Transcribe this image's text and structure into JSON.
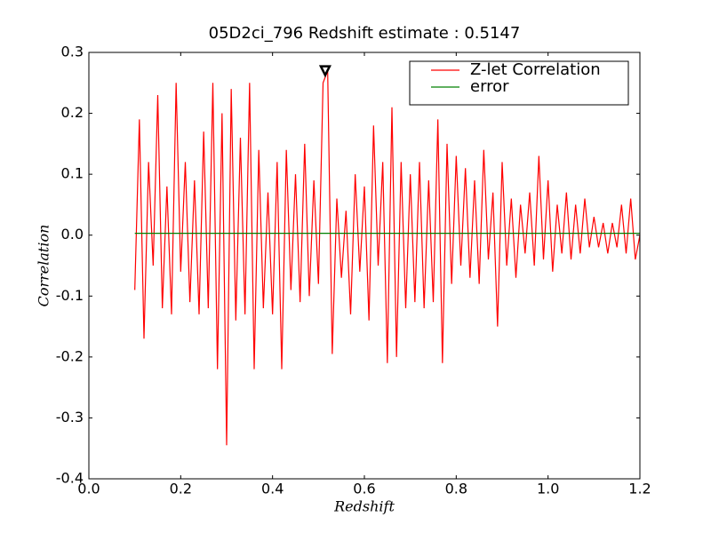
{
  "chart_data": {
    "type": "line",
    "title": "05D2ci_796 Redshift estimate : 0.5147",
    "x_label": "Redshift",
    "y_label": "Correlation",
    "xlim": [
      0,
      1.2
    ],
    "ylim": [
      -0.4,
      0.3
    ],
    "xticks": [
      {
        "value": 0,
        "label": "0.0"
      },
      0.2,
      0.4,
      0.6,
      0.8,
      {
        "value": 1,
        "label": "1.0"
      },
      1.2
    ],
    "yticks": [
      {
        "value": -0.4,
        "label": "-0.4"
      },
      -0.3,
      -0.2,
      -0.1,
      {
        "value": 0,
        "label": "0.0"
      },
      0.1,
      0.2,
      0.3
    ],
    "grid": false,
    "legend": "upper right",
    "marker": {
      "x": 0.5147,
      "y": 0.27
    },
    "series": [
      {
        "name": "Z-let Correlation",
        "color": "#ff0000",
        "x": [
          0.1,
          0.11,
          0.12,
          0.13,
          0.14,
          0.15,
          0.16,
          0.17,
          0.18,
          0.19,
          0.2,
          0.21,
          0.22,
          0.23,
          0.24,
          0.25,
          0.26,
          0.27,
          0.28,
          0.29,
          0.3,
          0.31,
          0.32,
          0.33,
          0.34,
          0.35,
          0.36,
          0.37,
          0.38,
          0.39,
          0.4,
          0.41,
          0.42,
          0.43,
          0.44,
          0.45,
          0.46,
          0.47,
          0.48,
          0.49,
          0.5,
          0.51,
          0.52,
          0.53,
          0.54,
          0.55,
          0.56,
          0.57,
          0.58,
          0.59,
          0.6,
          0.61,
          0.62,
          0.63,
          0.64,
          0.65,
          0.66,
          0.67,
          0.68,
          0.69,
          0.7,
          0.71,
          0.72,
          0.73,
          0.74,
          0.75,
          0.76,
          0.77,
          0.78,
          0.79,
          0.8,
          0.81,
          0.82,
          0.83,
          0.84,
          0.85,
          0.86,
          0.87,
          0.88,
          0.89,
          0.9,
          0.91,
          0.92,
          0.93,
          0.94,
          0.95,
          0.96,
          0.97,
          0.98,
          0.99,
          1.0,
          1.01,
          1.02,
          1.03,
          1.04,
          1.05,
          1.06,
          1.07,
          1.08,
          1.09,
          1.1,
          1.11,
          1.12,
          1.13,
          1.14,
          1.15,
          1.16,
          1.17,
          1.18,
          1.19,
          1.2
        ],
        "values": [
          -0.09,
          0.19,
          -0.17,
          0.12,
          -0.05,
          0.23,
          -0.12,
          0.08,
          -0.13,
          0.25,
          -0.06,
          0.12,
          -0.11,
          0.09,
          -0.13,
          0.17,
          -0.12,
          0.25,
          -0.22,
          0.2,
          -0.345,
          0.24,
          -0.14,
          0.16,
          -0.13,
          0.25,
          -0.22,
          0.14,
          -0.12,
          0.07,
          -0.13,
          0.12,
          -0.22,
          0.14,
          -0.09,
          0.1,
          -0.11,
          0.15,
          -0.1,
          0.09,
          -0.08,
          0.25,
          0.27,
          -0.195,
          0.06,
          -0.07,
          0.04,
          -0.13,
          0.1,
          -0.06,
          0.08,
          -0.14,
          0.18,
          -0.05,
          0.12,
          -0.21,
          0.21,
          -0.2,
          0.12,
          -0.12,
          0.1,
          -0.11,
          0.12,
          -0.12,
          0.09,
          -0.11,
          0.19,
          -0.21,
          0.15,
          -0.08,
          0.13,
          -0.05,
          0.11,
          -0.07,
          0.09,
          -0.08,
          0.14,
          -0.04,
          0.07,
          -0.15,
          0.12,
          -0.05,
          0.06,
          -0.07,
          0.05,
          -0.03,
          0.07,
          -0.05,
          0.13,
          -0.04,
          0.09,
          -0.06,
          0.05,
          -0.03,
          0.07,
          -0.04,
          0.05,
          -0.03,
          0.06,
          -0.02,
          0.03,
          -0.02,
          0.02,
          -0.03,
          0.02,
          -0.02,
          0.05,
          -0.03,
          0.06,
          -0.04,
          0.0
        ]
      },
      {
        "name": "error",
        "color": "#008000",
        "x": [
          0.1,
          1.2
        ],
        "values": [
          0.003,
          0.003
        ]
      }
    ]
  }
}
